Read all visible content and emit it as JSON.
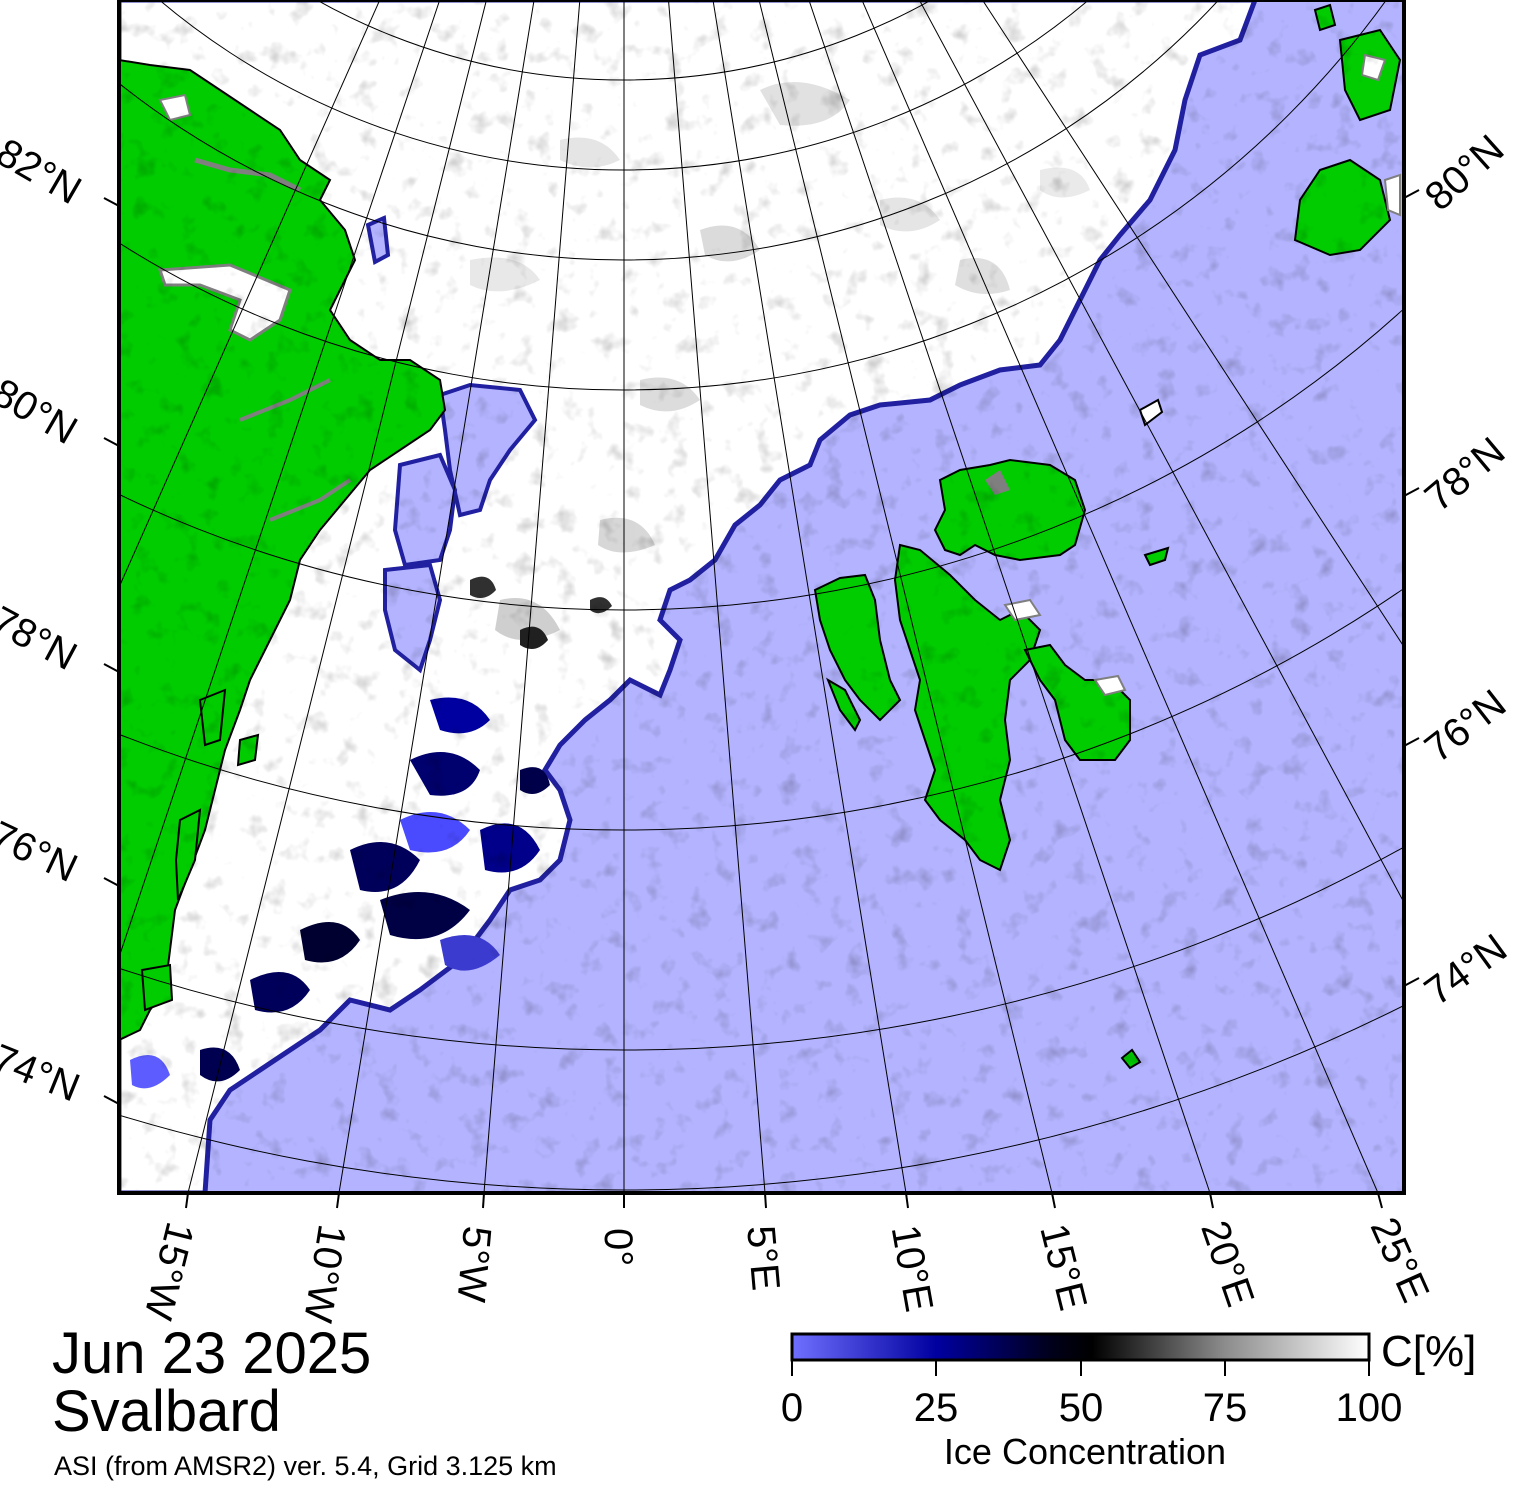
{
  "map": {
    "date": "Jun 23 2025",
    "region": "Svalbard",
    "source": "ASI (from AMSR2) ver. 5.4,  Grid 3.125 km",
    "colors": {
      "land": "#00cc00",
      "land_edge": "#7f7f7f",
      "open_water": "#b3b3ff",
      "full_ice": "#ffffff",
      "low_ice": "#5c5cff",
      "mid_ice": "#00003a"
    },
    "left_lat_labels": [
      "82°N",
      "80°N",
      "78°N",
      "76°N",
      "74°N"
    ],
    "right_lat_labels": [
      "80°N",
      "78°N",
      "76°N",
      "74°N"
    ],
    "lon_labels": [
      "15°W",
      "10°W",
      "5°W",
      "0°",
      "5°E",
      "10°E",
      "15°E",
      "20°E",
      "25°E"
    ]
  },
  "colorbar": {
    "unit": "C[%]",
    "ticks": [
      "0",
      "25",
      "50",
      "75",
      "100"
    ],
    "label": "Ice Concentration",
    "range": [
      0,
      100
    ]
  }
}
